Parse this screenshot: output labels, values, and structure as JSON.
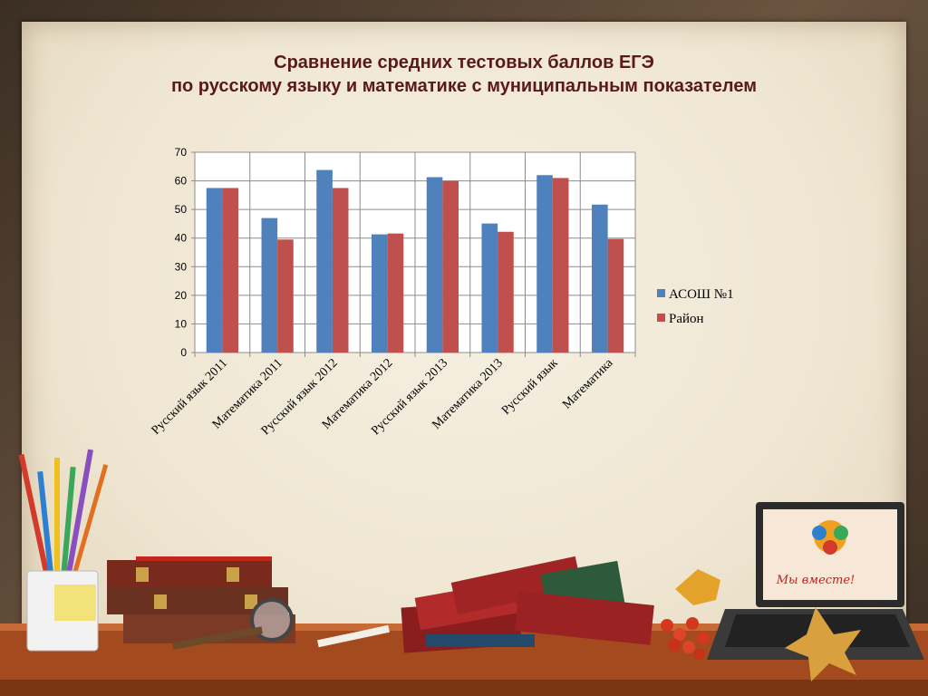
{
  "slide": {
    "title_line1": "Сравнение средних тестовых баллов ЕГЭ",
    "title_line2": "по русскому языку и математике с муниципальным показателем",
    "laptop_screen_text": "Мы вместе!"
  },
  "chart_data": {
    "type": "bar",
    "categories": [
      "Русский язык 2011",
      "Математика 2011",
      "Русский язык 2012",
      "Математика 2012",
      "Русский язык 2013",
      "Математика 2013",
      "Русский язык",
      "Математика"
    ],
    "series": [
      {
        "name": "АСОШ №1",
        "color": "#4f81bd",
        "values": [
          57.5,
          47,
          63.8,
          41.3,
          61.3,
          45.1,
          62,
          51.7
        ]
      },
      {
        "name": "Район",
        "color": "#c0504d",
        "values": [
          57.5,
          39.5,
          57.5,
          41.6,
          60,
          42.2,
          61,
          39.7
        ]
      }
    ],
    "ylim": [
      0,
      70
    ],
    "yticks": [
      0,
      10,
      20,
      30,
      40,
      50,
      60,
      70
    ],
    "grid": true,
    "legend": "right",
    "title": "",
    "xlabel": "",
    "ylabel": ""
  }
}
